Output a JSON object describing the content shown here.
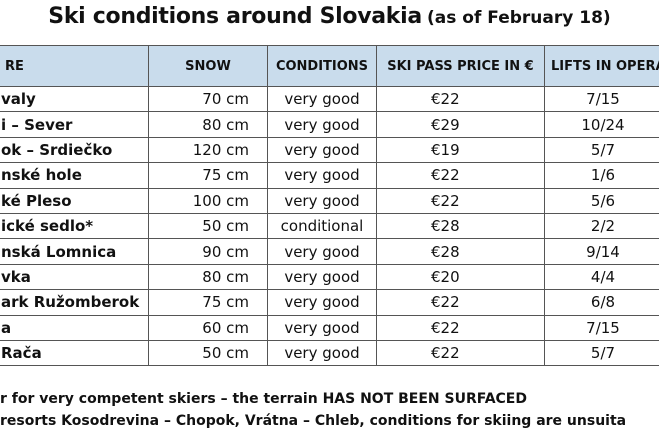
{
  "header": {
    "title": "Ski conditions around Slovakia",
    "subtitle": "(as of February 18)"
  },
  "table": {
    "columns": [
      "RE",
      "SNOW",
      "CONDITIONS",
      "SKI PASS PRICE IN €",
      "LIFTS IN OPERA"
    ],
    "rows": [
      [
        "valy",
        "70 cm",
        "very good",
        "€22",
        "7/15"
      ],
      [
        "i – Sever",
        "80 cm",
        "very good",
        "€29",
        "10/24"
      ],
      [
        "ok – Srdiečko",
        "120 cm",
        "very good",
        "€19",
        "5/7"
      ],
      [
        "nské hole",
        "75 cm",
        "very good",
        "€22",
        "1/6"
      ],
      [
        "ké Pleso",
        "100 cm",
        "very good",
        "€22",
        "5/6"
      ],
      [
        "ické sedlo*",
        "50 cm",
        "conditional",
        "€28",
        "2/2"
      ],
      [
        "nská Lomnica",
        "90 cm",
        "very good",
        "€28",
        "9/14"
      ],
      [
        "vka",
        "80 cm",
        "very good",
        "€20",
        "4/4"
      ],
      [
        "ark Ružomberok",
        "75 cm",
        "very good",
        "€22",
        "6/8"
      ],
      [
        "a",
        "60 cm",
        "very good",
        "€22",
        "7/15"
      ],
      [
        " Rača",
        "50 cm",
        "very good",
        "€22",
        "5/7"
      ]
    ]
  },
  "footnotes": [
    "r for very competent skiers – the terrain HAS NOT BEEN SURFACED",
    " resorts Kosodrevina – Chopok, Vrátna – Chleb, conditions for skiing are unsuita"
  ]
}
